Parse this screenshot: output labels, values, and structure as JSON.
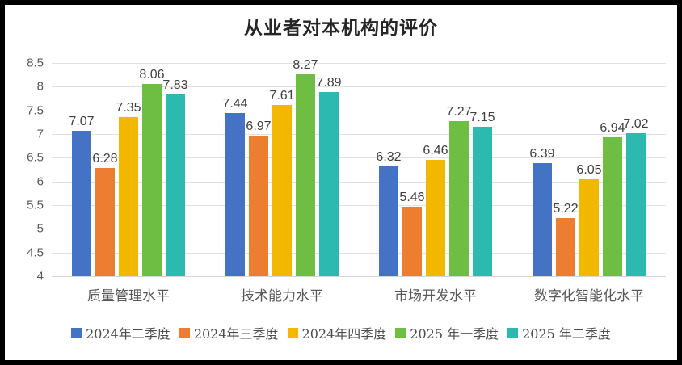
{
  "chart_data": {
    "type": "bar",
    "title": "从业者对本机构的评价",
    "categories": [
      "质量管理水平",
      "技术能力水平",
      "市场开发水平",
      "数字化智能化水平"
    ],
    "series": [
      {
        "name": "2024年二季度",
        "color": "#4472C4",
        "values": [
          7.07,
          7.44,
          6.32,
          6.39
        ]
      },
      {
        "name": "2024年三季度",
        "color": "#ED7D31",
        "values": [
          6.28,
          6.97,
          5.46,
          5.22
        ]
      },
      {
        "name": "2024年四季度",
        "color": "#F2B800",
        "values": [
          7.35,
          7.61,
          6.46,
          6.05
        ]
      },
      {
        "name": "2025 年一季度",
        "color": "#6FBE44",
        "values": [
          8.06,
          8.27,
          7.27,
          6.94
        ]
      },
      {
        "name": "2025 年二季度",
        "color": "#2CBAB0",
        "values": [
          7.83,
          7.89,
          7.15,
          7.02
        ]
      }
    ],
    "y_axis": {
      "min": 4,
      "max": 8.5,
      "step": 0.5,
      "ticks": [
        "8.5",
        "8",
        "7.5",
        "7",
        "6.5",
        "6",
        "5.5",
        "5",
        "4.5",
        "4"
      ]
    },
    "grid": true,
    "legend_position": "bottom",
    "value_label_decimals": 2
  }
}
